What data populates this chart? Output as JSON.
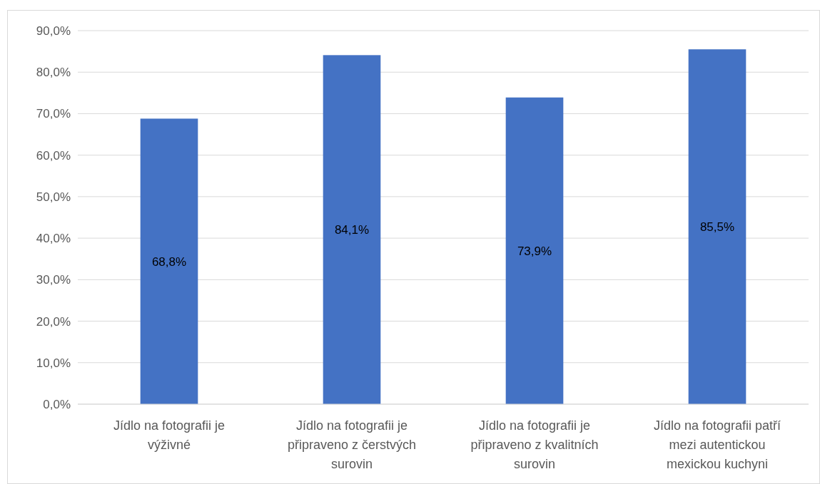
{
  "chart_data": {
    "type": "bar",
    "categories": [
      "Jídlo na fotografii je výživné",
      "Jídlo na fotografii je připraveno z čerstvých surovin",
      "Jídlo na fotografii je připraveno z kvalitních surovin",
      "Jídlo na fotografii patří mezi autentickou mexickou kuchyni"
    ],
    "values": [
      68.8,
      84.1,
      73.9,
      85.5
    ],
    "value_labels": [
      "68,8%",
      "84,1%",
      "73,9%",
      "85,5%"
    ],
    "color": "#4472c4",
    "ylim": [
      0,
      90
    ],
    "yticks": [
      {
        "value": 0,
        "label": "0,0%"
      },
      {
        "value": 10,
        "label": "10,0%"
      },
      {
        "value": 20,
        "label": "20,0%"
      },
      {
        "value": 30,
        "label": "30,0%"
      },
      {
        "value": 40,
        "label": "40,0%"
      },
      {
        "value": 50,
        "label": "50,0%"
      },
      {
        "value": 60,
        "label": "60,0%"
      },
      {
        "value": 70,
        "label": "70,0%"
      },
      {
        "value": 80,
        "label": "80,0%"
      },
      {
        "value": 90,
        "label": "90,0%"
      }
    ],
    "grid": "y"
  }
}
